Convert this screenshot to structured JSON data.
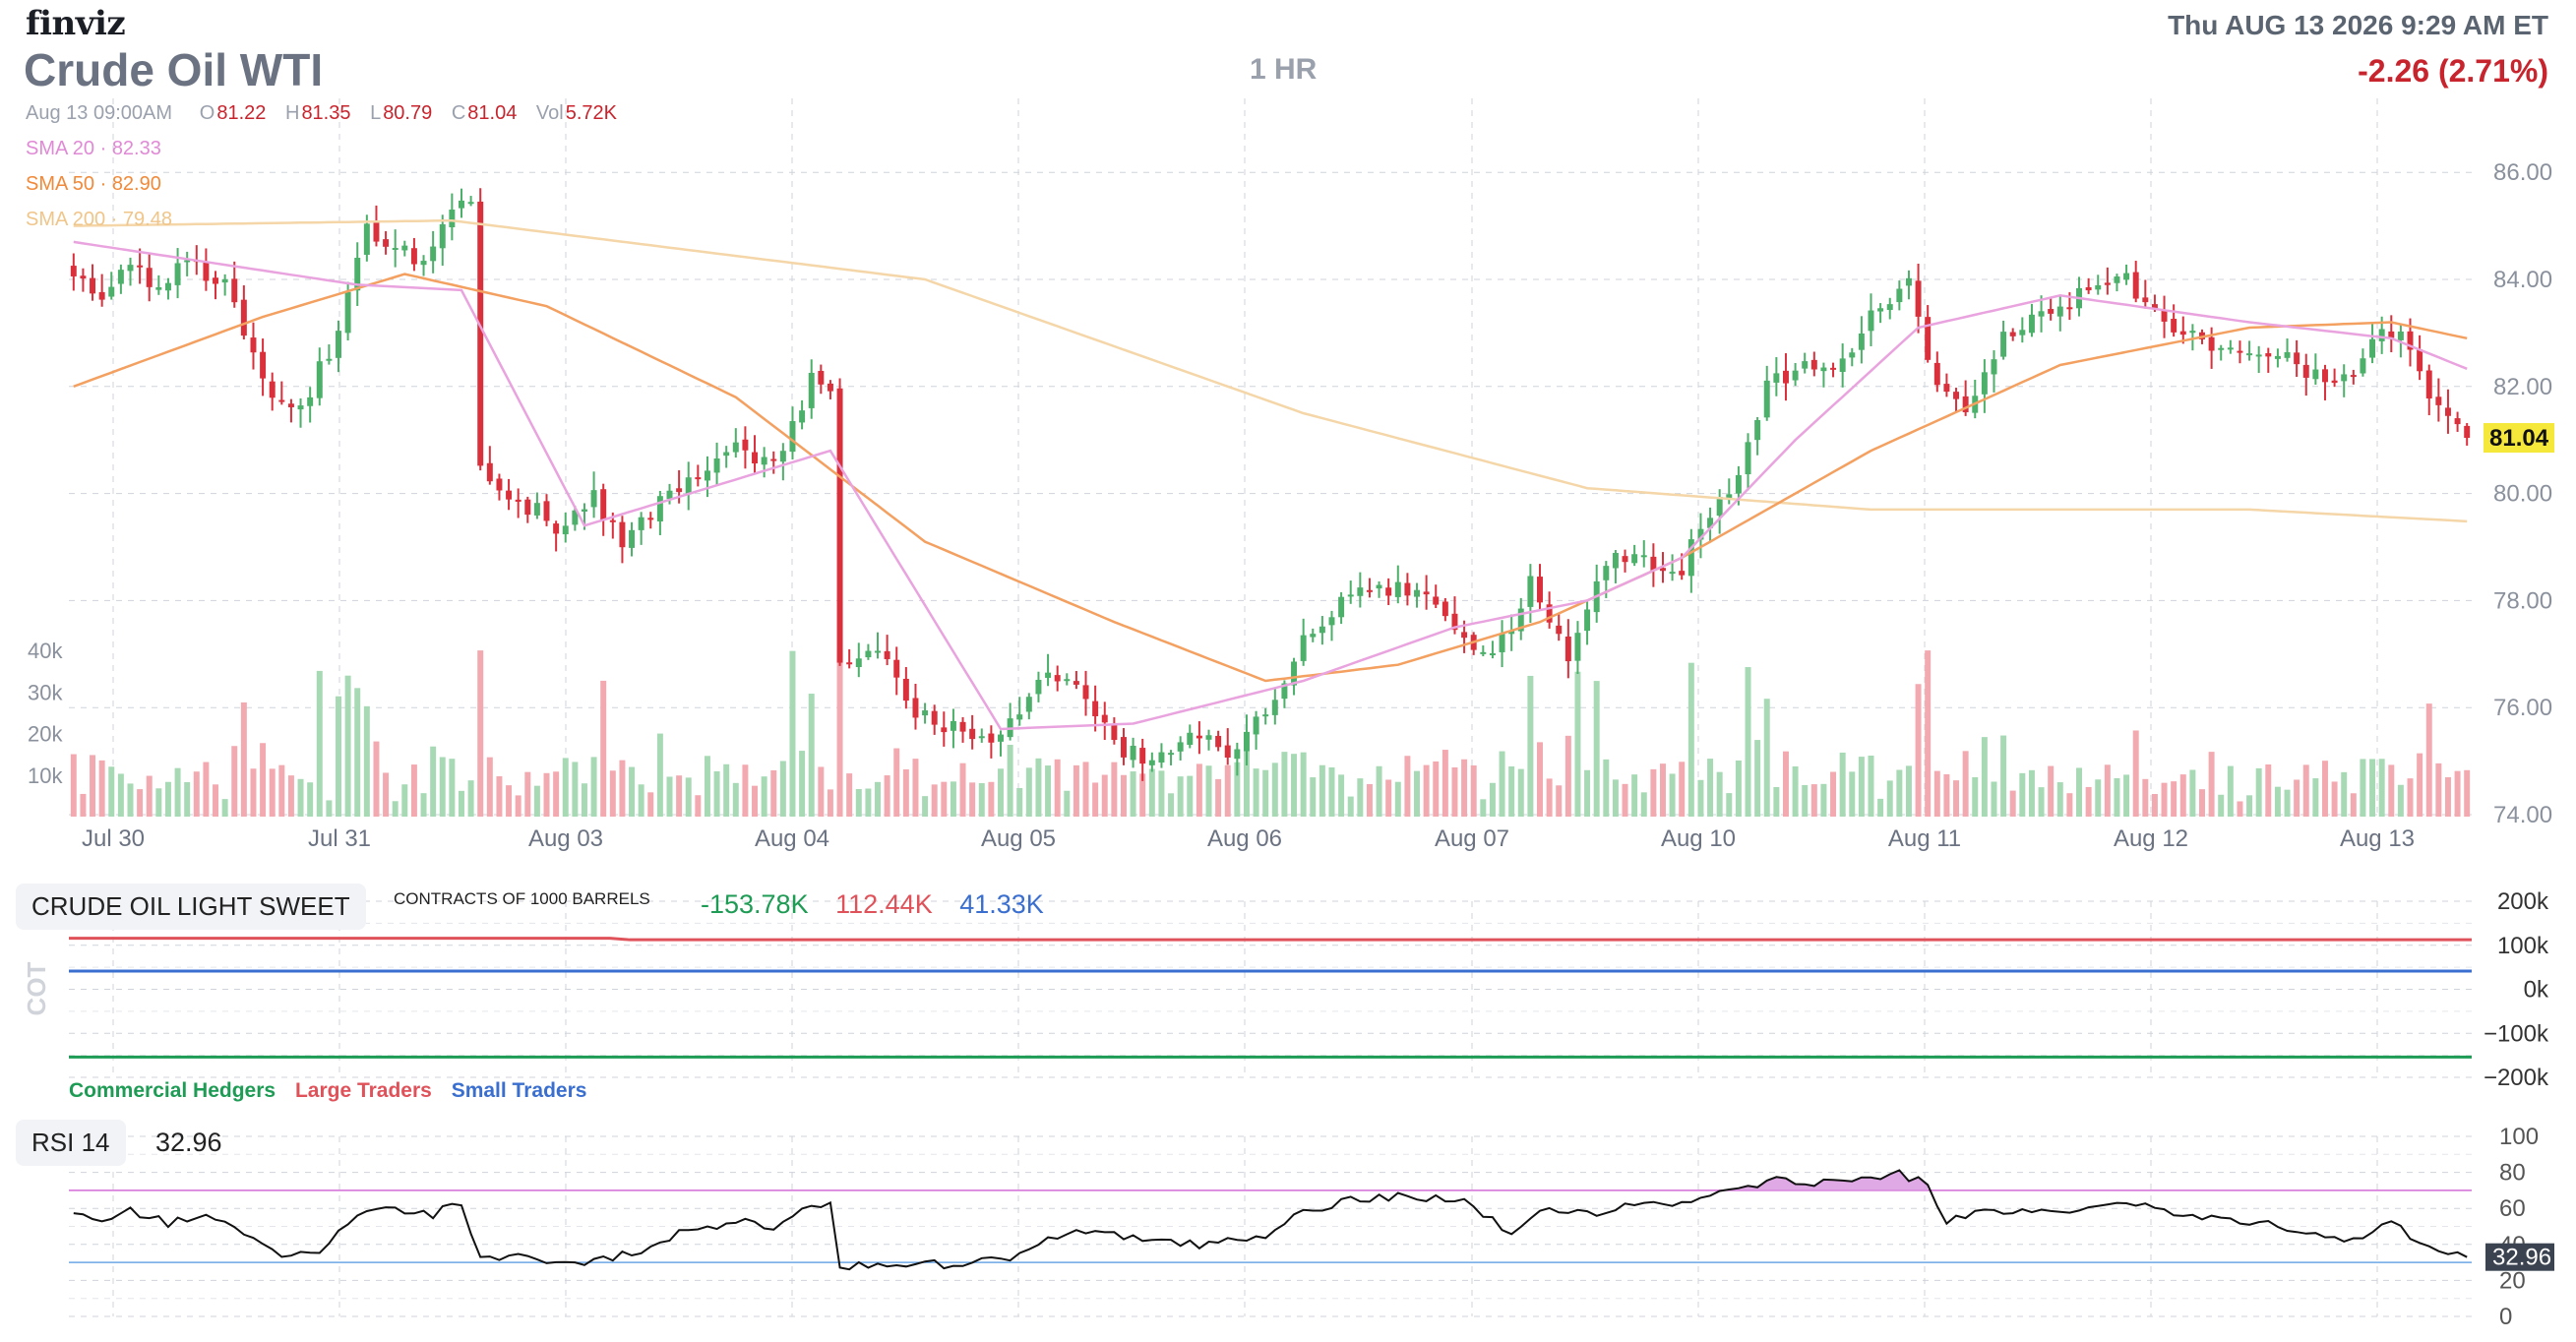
{
  "header": {
    "logo": "finviz",
    "datetime": "Thu AUG 13 2026 9:29 AM ET",
    "title": "Crude Oil WTI",
    "timeframe": "1 HR",
    "change": "-2.26 (2.71%)"
  },
  "ohlc": {
    "date": "Aug 13 09:00AM",
    "o_label": "O",
    "o": "81.22",
    "h_label": "H",
    "h": "81.35",
    "l_label": "L",
    "l": "80.79",
    "c_label": "C",
    "c": "81.04",
    "vol_label": "Vol",
    "vol": "5.72K"
  },
  "sma": {
    "sma20": "SMA 20 · 82.33",
    "sma50": "SMA 50 · 82.90",
    "sma200": "SMA 200 · 79.48"
  },
  "colors": {
    "up": "#4caf6a",
    "down": "#d9303c",
    "up_volume": "#a6d9b4",
    "down_volume": "#f2a9af",
    "sma20": "#e9a3de",
    "sma50": "#f3a060",
    "sma200": "#f4d6a8",
    "last_price_bg": "#f5e83b",
    "commercial": "#1e9b54",
    "large": "#e0525a",
    "small": "#3a6fcf",
    "rsi_line": "#111111",
    "rsi_fill": "#d99ae0"
  },
  "cot": {
    "label": "CRUDE OIL LIGHT SWEET",
    "units": "CONTRACTS OF 1000 BARRELS",
    "commercial_value": "-153.78K",
    "large_value": "112.44K",
    "small_value": "41.33K",
    "axis_title": "COT",
    "legend_commercial": "Commercial Hedgers",
    "legend_large": "Large Traders",
    "legend_small": "Small Traders",
    "ticks": [
      "200k",
      "100k",
      "0k",
      "−100k",
      "−200k"
    ]
  },
  "rsi": {
    "label": "RSI 14",
    "value": "32.96",
    "badge": "32.96",
    "ticks": [
      "100",
      "80",
      "60",
      "40",
      "20",
      "0"
    ]
  },
  "chart_data": [
    {
      "type": "candlestick",
      "title": "Crude Oil WTI",
      "timeframe": "1 HR",
      "x_labels": [
        "Jul 30",
        "Jul 31",
        "Aug 03",
        "Aug 04",
        "Aug 05",
        "Aug 06",
        "Aug 07",
        "Aug 10",
        "Aug 11",
        "Aug 12",
        "Aug 13"
      ],
      "y_ticks": [
        "86.00",
        "84.00",
        "82.00",
        "80.00",
        "78.00",
        "76.00",
        "74.00"
      ],
      "ylim": [
        74,
        86.5
      ],
      "last_price": "81.04",
      "close_path": [
        [
          0,
          84.2
        ],
        [
          3,
          83.5
        ],
        [
          6,
          84.4
        ],
        [
          9,
          83.8
        ],
        [
          12,
          84.3
        ],
        [
          16,
          83.9
        ],
        [
          18,
          83.0
        ],
        [
          21,
          81.7
        ],
        [
          24,
          81.6
        ],
        [
          28,
          83.0
        ],
        [
          31,
          85.0
        ],
        [
          34,
          84.6
        ],
        [
          37,
          84.2
        ],
        [
          40,
          85.2
        ],
        [
          42,
          85.5
        ],
        [
          43,
          80.4
        ],
        [
          47,
          79.9
        ],
        [
          51,
          79.4
        ],
        [
          55,
          80.0
        ],
        [
          58,
          79.0
        ],
        [
          62,
          79.8
        ],
        [
          66,
          80.4
        ],
        [
          70,
          80.9
        ],
        [
          74,
          80.5
        ],
        [
          78,
          82.1
        ],
        [
          80,
          81.8
        ],
        [
          81,
          76.9
        ],
        [
          85,
          77.2
        ],
        [
          89,
          75.9
        ],
        [
          93,
          75.6
        ],
        [
          97,
          75.2
        ],
        [
          99,
          75.7
        ],
        [
          103,
          76.8
        ],
        [
          106,
          76.3
        ],
        [
          110,
          75.3
        ],
        [
          114,
          75.0
        ],
        [
          118,
          75.6
        ],
        [
          122,
          75.1
        ],
        [
          126,
          75.9
        ],
        [
          130,
          77.3
        ],
        [
          134,
          78.0
        ],
        [
          138,
          78.2
        ],
        [
          142,
          78.2
        ],
        [
          146,
          77.4
        ],
        [
          150,
          76.9
        ],
        [
          154,
          78.3
        ],
        [
          158,
          77.0
        ],
        [
          162,
          78.8
        ],
        [
          166,
          78.7
        ],
        [
          170,
          78.6
        ],
        [
          172,
          79.5
        ],
        [
          175,
          80.0
        ],
        [
          179,
          82.0
        ],
        [
          183,
          82.3
        ],
        [
          187,
          82.4
        ],
        [
          190,
          83.3
        ],
        [
          194,
          84.0
        ],
        [
          197,
          82.0
        ],
        [
          200,
          81.6
        ],
        [
          204,
          83.0
        ],
        [
          208,
          83.3
        ],
        [
          212,
          83.7
        ],
        [
          216,
          84.1
        ],
        [
          220,
          83.5
        ],
        [
          223,
          83.0
        ],
        [
          227,
          82.7
        ],
        [
          231,
          82.7
        ],
        [
          235,
          82.4
        ],
        [
          239,
          81.9
        ],
        [
          243,
          82.8
        ],
        [
          246,
          83.2
        ],
        [
          249,
          81.9
        ],
        [
          253,
          81.04
        ]
      ],
      "volume_ticks": [
        "40k",
        "30k",
        "20k",
        "10k"
      ],
      "sma": {
        "sma20": [
          [
            0,
            84.7
          ],
          [
            30,
            83.9
          ],
          [
            41,
            83.8
          ],
          [
            54,
            79.4
          ],
          [
            80,
            80.8
          ],
          [
            98,
            75.6
          ],
          [
            112,
            75.7
          ],
          [
            130,
            76.5
          ],
          [
            146,
            77.5
          ],
          [
            160,
            78.0
          ],
          [
            170,
            78.8
          ],
          [
            182,
            81.0
          ],
          [
            195,
            83.1
          ],
          [
            210,
            83.7
          ],
          [
            230,
            83.2
          ],
          [
            245,
            82.9
          ],
          [
            253,
            82.33
          ]
        ],
        "sma50": [
          [
            0,
            82.0
          ],
          [
            20,
            83.3
          ],
          [
            35,
            84.1
          ],
          [
            50,
            83.5
          ],
          [
            70,
            81.8
          ],
          [
            90,
            79.1
          ],
          [
            110,
            77.6
          ],
          [
            126,
            76.5
          ],
          [
            140,
            76.8
          ],
          [
            155,
            77.6
          ],
          [
            170,
            78.8
          ],
          [
            190,
            80.8
          ],
          [
            210,
            82.4
          ],
          [
            230,
            83.1
          ],
          [
            245,
            83.2
          ],
          [
            253,
            82.9
          ]
        ],
        "sma200": [
          [
            0,
            85.0
          ],
          [
            40,
            85.1
          ],
          [
            90,
            84.0
          ],
          [
            130,
            81.5
          ],
          [
            160,
            80.1
          ],
          [
            190,
            79.7
          ],
          [
            230,
            79.7
          ],
          [
            253,
            79.48
          ]
        ]
      }
    },
    {
      "type": "line",
      "title": "CRUDE OIL LIGHT SWEET",
      "ylabel": "COT",
      "ylim": [
        -200000,
        200000
      ],
      "series": [
        {
          "name": "Commercial Hedgers",
          "values": [
            -153780,
            -153780
          ]
        },
        {
          "name": "Large Traders",
          "values": [
            116000,
            112440
          ]
        },
        {
          "name": "Small Traders",
          "values": [
            41330,
            41330
          ]
        }
      ]
    },
    {
      "type": "line",
      "title": "RSI 14",
      "ylim": [
        0,
        100
      ],
      "overbought": 70,
      "oversold": 30,
      "value": 32.96,
      "values": [
        [
          0,
          57
        ],
        [
          3,
          52
        ],
        [
          6,
          58
        ],
        [
          10,
          52
        ],
        [
          14,
          54
        ],
        [
          18,
          47
        ],
        [
          22,
          34
        ],
        [
          26,
          35
        ],
        [
          30,
          56
        ],
        [
          34,
          60
        ],
        [
          38,
          57
        ],
        [
          41,
          63
        ],
        [
          43,
          33
        ],
        [
          49,
          32
        ],
        [
          55,
          30
        ],
        [
          60,
          36
        ],
        [
          65,
          48
        ],
        [
          70,
          53
        ],
        [
          74,
          50
        ],
        [
          77,
          60
        ],
        [
          80,
          61
        ],
        [
          81,
          26
        ],
        [
          85,
          30
        ],
        [
          90,
          29
        ],
        [
          95,
          29
        ],
        [
          100,
          34
        ],
        [
          105,
          48
        ],
        [
          110,
          46
        ],
        [
          115,
          41
        ],
        [
          120,
          40
        ],
        [
          125,
          43
        ],
        [
          130,
          57
        ],
        [
          134,
          63
        ],
        [
          138,
          67
        ],
        [
          142,
          66
        ],
        [
          147,
          63
        ],
        [
          152,
          47
        ],
        [
          156,
          61
        ],
        [
          160,
          57
        ],
        [
          165,
          63
        ],
        [
          170,
          61
        ],
        [
          175,
          70
        ],
        [
          180,
          76
        ],
        [
          185,
          74
        ],
        [
          188,
          73
        ],
        [
          192,
          80
        ],
        [
          196,
          75
        ],
        [
          198,
          52
        ],
        [
          201,
          57
        ],
        [
          205,
          57
        ],
        [
          210,
          59
        ],
        [
          215,
          62
        ],
        [
          220,
          60
        ],
        [
          225,
          55
        ],
        [
          230,
          52
        ],
        [
          235,
          49
        ],
        [
          240,
          42
        ],
        [
          245,
          51
        ],
        [
          249,
          40
        ],
        [
          253,
          33
        ]
      ]
    }
  ]
}
